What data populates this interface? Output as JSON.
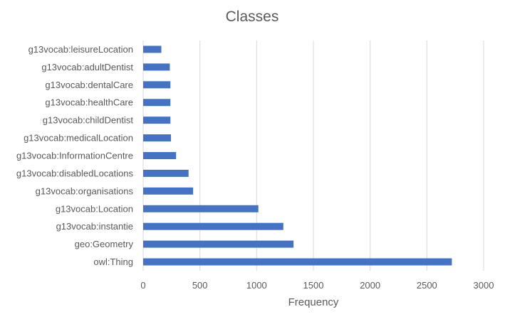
{
  "chart_data": {
    "type": "bar",
    "orientation": "horizontal",
    "title": "Classes",
    "xlabel": "Frequency",
    "ylabel": "",
    "xlim": [
      0,
      3000
    ],
    "xticks": [
      0,
      500,
      1000,
      1500,
      2000,
      2500,
      3000
    ],
    "grid": true,
    "legend": "none",
    "colors": {
      "bar": "#4472C4",
      "grid": "#D9D9D9",
      "text": "#595959"
    },
    "categories": [
      "g13vocab:leisureLocation",
      "g13vocab:adultDentist",
      "g13vocab:dentalCare",
      "g13vocab:healthCare",
      "g13vocab:childDentist",
      "g13vocab:medicalLocation",
      "g13vocab:InformationCentre",
      "g13vocab:disabledLocations",
      "g13vocab:organisations",
      "g13vocab:Location",
      "g13vocab:instantie",
      "geo:Geometry",
      "owl:Thing"
    ],
    "values": [
      160,
      235,
      240,
      240,
      240,
      245,
      290,
      400,
      440,
      1015,
      1235,
      1325,
      2720
    ]
  }
}
